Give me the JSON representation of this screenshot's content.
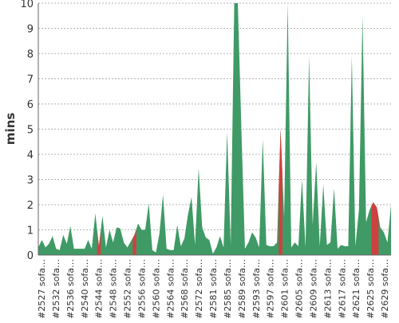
{
  "chart_data": {
    "type": "area",
    "ylabel": "mins",
    "ylim": [
      0,
      10
    ],
    "yticks": [
      0,
      1,
      2,
      3,
      4,
      5,
      6,
      7,
      8,
      9,
      10
    ],
    "grid": "horizontal-dashed",
    "tick_labels": [
      "#2527 sofa…",
      "#2532 sofa…",
      "#2536 sofa…",
      "#2540 sofa…",
      "#2544 sofa…",
      "#2548 sofa…",
      "#2552 sofa…",
      "#2556 sofa…",
      "#2560 sofa…",
      "#2564 sofa…",
      "#2568 sofa…",
      "#2572 sofa…",
      "#2581 sofa…",
      "#2585 sofa…",
      "#2589 sofa…",
      "#2593 sofa…",
      "#2597 sofa…",
      "#2601 sofa…",
      "#2605 sofa…",
      "#2609 sofa…",
      "#2613 sofa…",
      "#2617 sofa…",
      "#2621 sofa…",
      "#2625 sofa…",
      "#2629 sofa…"
    ],
    "colors": {
      "success": "#3f9a65",
      "failure": "#d23f3f",
      "grid": "#9a9a9a"
    },
    "series": [
      {
        "values": [
          0.3,
          0.6,
          0.3,
          0.45,
          0.75,
          0.25,
          0.2,
          0.8,
          0.45,
          1.15,
          0.25,
          0.25,
          0.25,
          0.25,
          0.6,
          0.25,
          1.65,
          0.35,
          1.55,
          0.3,
          1.0,
          0.5,
          1.1,
          1.05,
          0.5,
          0.3,
          0.55,
          0.8,
          1.25,
          1.0,
          1.0,
          2.05,
          0.2,
          0.1,
          0.85,
          2.4,
          0.25,
          0.2,
          0.2,
          1.2,
          0.35,
          0.65,
          1.6,
          2.3,
          0.4,
          3.45,
          1.1,
          0.7,
          0.6,
          0.05,
          0.3,
          0.75,
          0.3,
          4.9,
          0.4,
          10.0,
          10.0,
          5.0,
          0.25,
          0.5,
          0.9,
          0.7,
          0.3,
          4.6,
          0.4,
          0.35,
          0.35,
          0.5,
          5.0,
          1.5,
          10.0,
          0.3,
          0.5,
          0.35,
          3.0,
          0.3,
          7.9,
          1.2,
          3.7,
          0.35,
          2.8,
          0.4,
          0.5,
          2.65,
          0.25,
          0.4,
          0.35,
          0.35,
          7.9,
          0.35,
          1.8,
          9.5,
          1.3,
          1.8,
          2.1,
          1.9,
          1.1,
          0.9,
          0.5,
          2.0
        ],
        "status": [
          "ok",
          "ok",
          "ok",
          "ok",
          "ok",
          "ok",
          "ok",
          "ok",
          "ok",
          "ok",
          "ok",
          "ok",
          "ok",
          "ok",
          "ok",
          "ok",
          "ok",
          "fail",
          "ok",
          "ok",
          "ok",
          "ok",
          "ok",
          "ok",
          "ok",
          "ok",
          "ok",
          "fail",
          "ok",
          "ok",
          "ok",
          "ok",
          "ok",
          "ok",
          "ok",
          "ok",
          "ok",
          "ok",
          "ok",
          "ok",
          "ok",
          "ok",
          "ok",
          "ok",
          "ok",
          "ok",
          "ok",
          "ok",
          "ok",
          "ok",
          "ok",
          "ok",
          "ok",
          "ok",
          "ok",
          "ok",
          "ok",
          "ok",
          "ok",
          "ok",
          "ok",
          "ok",
          "ok",
          "ok",
          "ok",
          "ok",
          "ok",
          "ok",
          "fail",
          "ok",
          "ok",
          "ok",
          "ok",
          "ok",
          "ok",
          "ok",
          "ok",
          "ok",
          "ok",
          "ok",
          "ok",
          "ok",
          "ok",
          "ok",
          "ok",
          "ok",
          "ok",
          "ok",
          "ok",
          "ok",
          "ok",
          "ok",
          "ok",
          "ok",
          "fail",
          "fail",
          "ok",
          "ok",
          "ok",
          "ok"
        ]
      }
    ]
  }
}
